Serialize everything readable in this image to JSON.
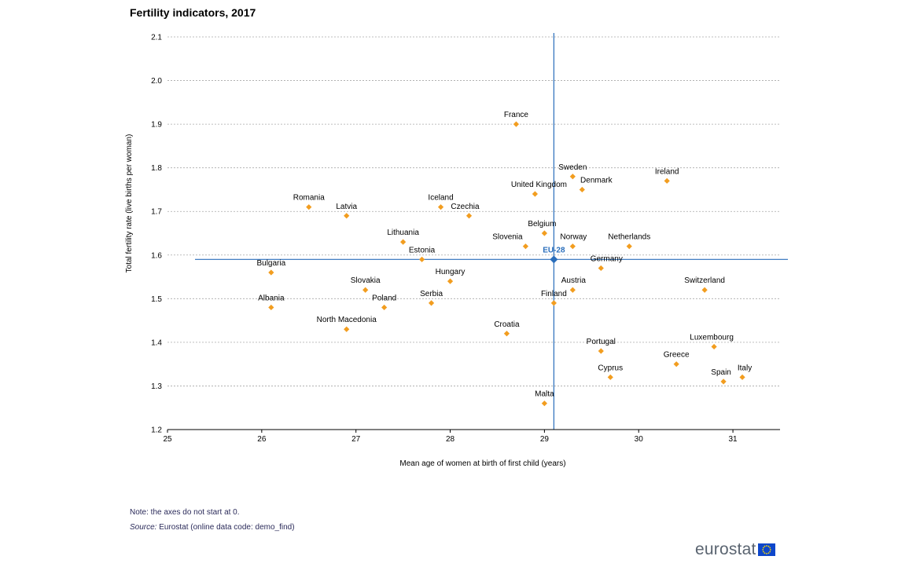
{
  "chart_data": {
    "type": "scatter",
    "title": "Fertility indicators, 2017",
    "xlabel": "Mean age of women at birth of first child (years)",
    "ylabel": "Total fertility rate (live births per woman)",
    "xlim": [
      25,
      31.5
    ],
    "ylim": [
      1.2,
      2.1
    ],
    "xticks": [
      "25",
      "26",
      "27",
      "28",
      "29",
      "30",
      "31"
    ],
    "yticks": [
      "1.2",
      "1.3",
      "1.4",
      "1.5",
      "1.6",
      "1.7",
      "1.8",
      "1.9",
      "2.0",
      "2.1"
    ],
    "grid": "horizontal-dashed",
    "point_color": "#f29d1f",
    "highlight_color": "#2a6ebb",
    "points": [
      {
        "name": "France",
        "x": 28.7,
        "y": 1.9
      },
      {
        "name": "Sweden",
        "x": 29.3,
        "y": 1.78
      },
      {
        "name": "Ireland",
        "x": 30.3,
        "y": 1.77
      },
      {
        "name": "Denmark",
        "x": 29.4,
        "y": 1.75
      },
      {
        "name": "United Kingdom",
        "x": 28.9,
        "y": 1.74
      },
      {
        "name": "Romania",
        "x": 26.5,
        "y": 1.71
      },
      {
        "name": "Iceland",
        "x": 27.9,
        "y": 1.71
      },
      {
        "name": "Latvia",
        "x": 26.9,
        "y": 1.69
      },
      {
        "name": "Czechia",
        "x": 28.2,
        "y": 1.69
      },
      {
        "name": "Belgium",
        "x": 29.0,
        "y": 1.65
      },
      {
        "name": "Lithuania",
        "x": 27.5,
        "y": 1.63
      },
      {
        "name": "Slovenia",
        "x": 28.8,
        "y": 1.62
      },
      {
        "name": "Norway",
        "x": 29.3,
        "y": 1.62
      },
      {
        "name": "Netherlands",
        "x": 29.9,
        "y": 1.62
      },
      {
        "name": "Estonia",
        "x": 27.7,
        "y": 1.59
      },
      {
        "name": "Germany",
        "x": 29.6,
        "y": 1.57
      },
      {
        "name": "Bulgaria",
        "x": 26.1,
        "y": 1.56
      },
      {
        "name": "Hungary",
        "x": 28.0,
        "y": 1.54
      },
      {
        "name": "Slovakia",
        "x": 27.1,
        "y": 1.52
      },
      {
        "name": "Austria",
        "x": 29.3,
        "y": 1.52
      },
      {
        "name": "Switzerland",
        "x": 30.7,
        "y": 1.52
      },
      {
        "name": "Serbia",
        "x": 27.8,
        "y": 1.49
      },
      {
        "name": "Finland",
        "x": 29.1,
        "y": 1.49
      },
      {
        "name": "Albania",
        "x": 26.1,
        "y": 1.48
      },
      {
        "name": "Poland",
        "x": 27.3,
        "y": 1.48
      },
      {
        "name": "North Macedonia",
        "x": 26.9,
        "y": 1.43
      },
      {
        "name": "Croatia",
        "x": 28.6,
        "y": 1.42
      },
      {
        "name": "Luxembourg",
        "x": 30.8,
        "y": 1.39
      },
      {
        "name": "Portugal",
        "x": 29.6,
        "y": 1.38
      },
      {
        "name": "Greece",
        "x": 30.4,
        "y": 1.35
      },
      {
        "name": "Cyprus",
        "x": 29.7,
        "y": 1.32
      },
      {
        "name": "Italy",
        "x": 31.1,
        "y": 1.32
      },
      {
        "name": "Spain",
        "x": 30.9,
        "y": 1.31
      },
      {
        "name": "Malta",
        "x": 29.0,
        "y": 1.26
      }
    ],
    "reference": {
      "name": "EU-28",
      "x": 29.1,
      "y": 1.59
    }
  },
  "footer": {
    "note": "Note: the axes do not start at 0.",
    "source_label": "Source:",
    "source_text": " Eurostat (online data code: demo_find)",
    "logo_text": "eurostat"
  }
}
